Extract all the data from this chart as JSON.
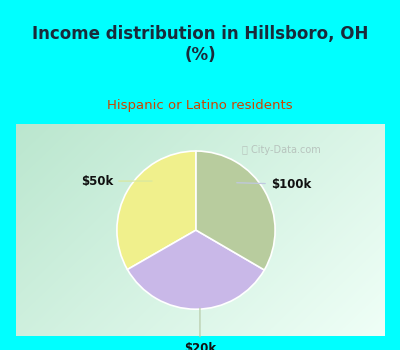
{
  "title": "Income distribution in Hillsboro, OH\n(%)",
  "subtitle": "Hispanic or Latino residents",
  "slices": [
    {
      "label": "$50k",
      "value": 33.3,
      "color": "#f0f08c"
    },
    {
      "label": "$100k",
      "value": 33.3,
      "color": "#c9b8e8"
    },
    {
      "label": "$20k",
      "value": 33.4,
      "color": "#b8cc9e"
    }
  ],
  "title_color": "#1a2a3a",
  "subtitle_color": "#cc4400",
  "header_bg": "#00ffff",
  "border_bg": "#00ffff",
  "watermark": "City-Data.com",
  "label_color": "#111111",
  "startangle": 90,
  "border_width": 0.04
}
